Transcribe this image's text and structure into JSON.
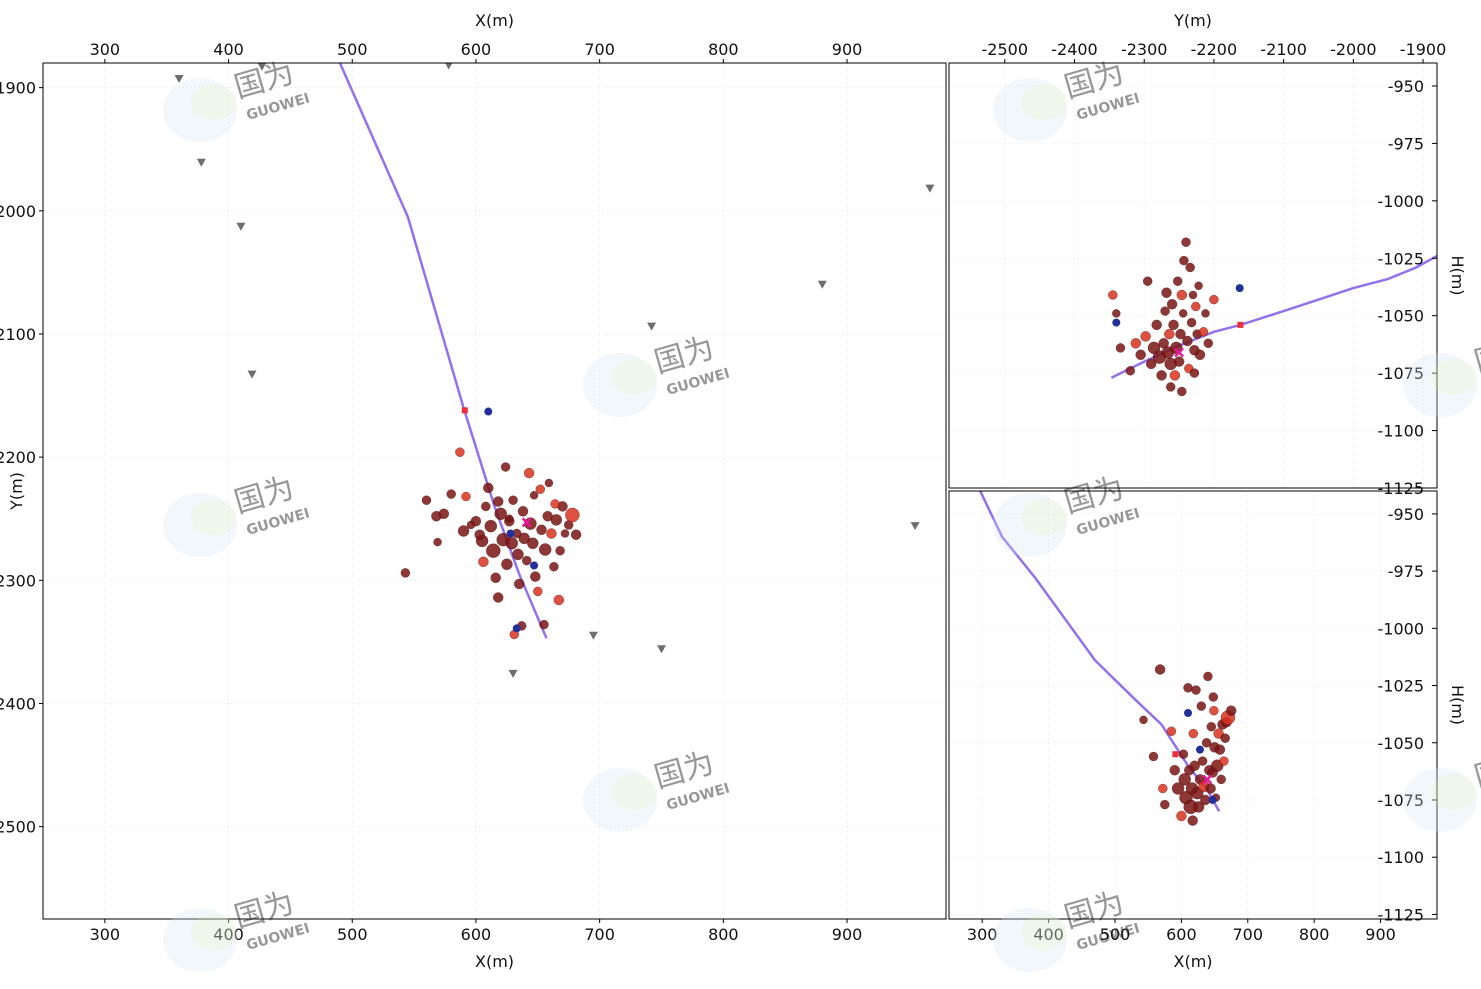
{
  "colors": {
    "event_dark": "#7a1414",
    "event_red": "#d8321e",
    "event_blue": "#24309a",
    "well": "#9370f0",
    "station": "#6e6e6e",
    "marker": "#e5169a",
    "perf": "#ee2b3a"
  },
  "watermark": {
    "cn": "国为",
    "en": "GUOWEI"
  },
  "chart_data": [
    {
      "type": "scatter",
      "view": "plan",
      "xlabel": "X(m)",
      "ylabel": "Y(m)",
      "xlim": [
        250,
        980
      ],
      "ylim": [
        -2575,
        -1880
      ],
      "xticks": [
        300,
        400,
        500,
        600,
        700,
        800,
        900
      ],
      "yticks": [
        -1900,
        -2000,
        -2100,
        -2200,
        -2300,
        -2400,
        -2500
      ],
      "xtick_labels": [
        "300",
        "400",
        "500",
        "600",
        "700",
        "800",
        "900"
      ],
      "ytick_labels": [
        "-1900",
        "-2000",
        "-2100",
        "-2200",
        "-2300",
        "-2400",
        "-2500"
      ],
      "stations": [
        [
          360,
          -1893
        ],
        [
          378,
          -1961
        ],
        [
          410,
          -2013
        ],
        [
          419,
          -2133
        ],
        [
          427,
          -1883
        ],
        [
          578,
          -1882
        ],
        [
          742,
          -2094
        ],
        [
          880,
          -2060
        ],
        [
          967,
          -1982
        ],
        [
          955,
          -2256
        ],
        [
          695,
          -2345
        ],
        [
          750,
          -2356
        ],
        [
          630,
          -2376
        ]
      ],
      "well": [
        [
          490,
          -1880
        ],
        [
          545,
          -2005
        ],
        [
          590,
          -2160
        ],
        [
          615,
          -2240
        ],
        [
          635,
          -2295
        ],
        [
          657,
          -2347
        ]
      ],
      "perf": [
        [
          591,
          -2162
        ]
      ],
      "marker": [
        [
          641,
          -2253
        ]
      ],
      "events_blue": [
        [
          610,
          -2163
        ],
        [
          633,
          -2339
        ],
        [
          647,
          -2288
        ],
        [
          628,
          -2262
        ]
      ],
      "events": [
        [
          543,
          -2294,
          4.5,
          "d"
        ],
        [
          560,
          -2235,
          4.5,
          "d"
        ],
        [
          568,
          -2248,
          5,
          "d"
        ],
        [
          569,
          -2269,
          4,
          "d"
        ],
        [
          574,
          -2246,
          5,
          "d"
        ],
        [
          587,
          -2196,
          4.5,
          "r"
        ],
        [
          580,
          -2230,
          4.5,
          "d"
        ],
        [
          590,
          -2260,
          5.5,
          "d"
        ],
        [
          592,
          -2232,
          4.5,
          "r"
        ],
        [
          600,
          -2252,
          5,
          "d"
        ],
        [
          605,
          -2268,
          6,
          "d"
        ],
        [
          606,
          -2285,
          5,
          "r"
        ],
        [
          608,
          -2240,
          4.5,
          "d"
        ],
        [
          610,
          -2225,
          5,
          "d"
        ],
        [
          612,
          -2256,
          6,
          "d"
        ],
        [
          614,
          -2276,
          7,
          "d"
        ],
        [
          616,
          -2298,
          5,
          "d"
        ],
        [
          618,
          -2314,
          5,
          "d"
        ],
        [
          620,
          -2246,
          6,
          "d"
        ],
        [
          622,
          -2267,
          6.5,
          "d"
        ],
        [
          624,
          -2208,
          4.5,
          "d"
        ],
        [
          625,
          -2287,
          5.5,
          "d"
        ],
        [
          627,
          -2252,
          5,
          "d"
        ],
        [
          629,
          -2270,
          6,
          "d"
        ],
        [
          630,
          -2235,
          4.5,
          "d"
        ],
        [
          631,
          -2344,
          4.5,
          "r"
        ],
        [
          633,
          -2262,
          4.5,
          "d"
        ],
        [
          634,
          -2279,
          5.5,
          "d"
        ],
        [
          635,
          -2303,
          5,
          "d"
        ],
        [
          637,
          -2337,
          4.5,
          "d"
        ],
        [
          638,
          -2244,
          5,
          "d"
        ],
        [
          639,
          -2266,
          5.5,
          "d"
        ],
        [
          641,
          -2284,
          4.5,
          "d"
        ],
        [
          643,
          -2213,
          5,
          "r"
        ],
        [
          644,
          -2254,
          6,
          "d"
        ],
        [
          646,
          -2270,
          5.5,
          "d"
        ],
        [
          647,
          -2231,
          4,
          "d"
        ],
        [
          648,
          -2297,
          5,
          "d"
        ],
        [
          650,
          -2309,
          4.5,
          "r"
        ],
        [
          652,
          -2226,
          4.5,
          "r"
        ],
        [
          653,
          -2259,
          5,
          "d"
        ],
        [
          655,
          -2336,
          4.5,
          "d"
        ],
        [
          656,
          -2275,
          6,
          "d"
        ],
        [
          658,
          -2248,
          5,
          "d"
        ],
        [
          659,
          -2221,
          4,
          "d"
        ],
        [
          661,
          -2262,
          5,
          "r"
        ],
        [
          663,
          -2289,
          4.5,
          "d"
        ],
        [
          665,
          -2251,
          5.5,
          "d"
        ],
        [
          667,
          -2316,
          5,
          "r"
        ],
        [
          668,
          -2276,
          4.5,
          "d"
        ],
        [
          670,
          -2240,
          5,
          "d"
        ],
        [
          672,
          -2262,
          4,
          "d"
        ],
        [
          675,
          -2255,
          4.5,
          "d"
        ],
        [
          678,
          -2247,
          7,
          "r"
        ],
        [
          681,
          -2263,
          5,
          "d"
        ],
        [
          664,
          -2238,
          4.5,
          "r"
        ],
        [
          618,
          -2236,
          5,
          "d"
        ],
        [
          627,
          -2250,
          4,
          "d"
        ],
        [
          603,
          -2263,
          5,
          "d"
        ],
        [
          596,
          -2255,
          4,
          "d"
        ]
      ]
    },
    {
      "type": "scatter",
      "view": "side-y",
      "xlabel": "Y(m)",
      "ylabel": "H(m)",
      "xlim": [
        -2580,
        -1880
      ],
      "ylim": [
        -1125,
        -940
      ],
      "xticks": [
        -2500,
        -2400,
        -2300,
        -2200,
        -2100,
        -2000,
        -1900
      ],
      "yticks": [
        -950,
        -975,
        -1000,
        -1025,
        -1050,
        -1075,
        -1100,
        -1125
      ],
      "xtick_labels": [
        "-2500",
        "-2400",
        "-2300",
        "-2200",
        "-2100",
        "-2000",
        "-1900"
      ],
      "ytick_labels": [
        "-950",
        "-975",
        "-1000",
        "-1025",
        "-1050",
        "-1075",
        "-1100",
        "-1125"
      ],
      "well": [
        [
          -2347,
          -1077
        ],
        [
          -2300,
          -1070
        ],
        [
          -2250,
          -1063
        ],
        [
          -2200,
          -1057
        ],
        [
          -2162,
          -1054
        ],
        [
          -2100,
          -1048
        ],
        [
          -2040,
          -1042
        ],
        [
          -2000,
          -1038
        ],
        [
          -1950,
          -1034
        ],
        [
          -1910,
          -1029
        ],
        [
          -1880,
          -1024
        ]
      ],
      "perf": [
        [
          -2162,
          -1054
        ]
      ],
      "marker": [
        [
          -2250,
          -1066
        ]
      ],
      "events_blue": [
        [
          -2163,
          -1038
        ],
        [
          -2340,
          -1053
        ]
      ],
      "events": [
        [
          -2345,
          -1041,
          4.5,
          "r"
        ],
        [
          -2340,
          -1049,
          4,
          "d"
        ],
        [
          -2334,
          -1064,
          4.5,
          "d"
        ],
        [
          -2320,
          -1074,
          4.5,
          "d"
        ],
        [
          -2312,
          -1062,
          5,
          "r"
        ],
        [
          -2305,
          -1067,
          5,
          "d"
        ],
        [
          -2298,
          -1059,
          5,
          "r"
        ],
        [
          -2295,
          -1035,
          4.5,
          "d"
        ],
        [
          -2290,
          -1071,
          5,
          "d"
        ],
        [
          -2286,
          -1064,
          6,
          "d"
        ],
        [
          -2282,
          -1054,
          5,
          "d"
        ],
        [
          -2278,
          -1068,
          6.5,
          "d"
        ],
        [
          -2275,
          -1076,
          5,
          "d"
        ],
        [
          -2272,
          -1062,
          5,
          "d"
        ],
        [
          -2270,
          -1048,
          4.5,
          "d"
        ],
        [
          -2268,
          -1040,
          5,
          "d"
        ],
        [
          -2266,
          -1066,
          6,
          "d"
        ],
        [
          -2264,
          -1058,
          5,
          "r"
        ],
        [
          -2262,
          -1071,
          6,
          "d"
        ],
        [
          -2260,
          -1045,
          5,
          "d"
        ],
        [
          -2258,
          -1054,
          5,
          "d"
        ],
        [
          -2256,
          -1076,
          5,
          "r"
        ],
        [
          -2254,
          -1064,
          6,
          "d"
        ],
        [
          -2252,
          -1035,
          4.5,
          "d"
        ],
        [
          -2250,
          -1070,
          5,
          "d"
        ],
        [
          -2248,
          -1058,
          5,
          "d"
        ],
        [
          -2246,
          -1041,
          5,
          "r"
        ],
        [
          -2244,
          -1049,
          4,
          "d"
        ],
        [
          -2243,
          -1026,
          4.5,
          "d"
        ],
        [
          -2240,
          -1018,
          4.5,
          "d"
        ],
        [
          -2238,
          -1061,
          5,
          "d"
        ],
        [
          -2236,
          -1073,
          4.5,
          "r"
        ],
        [
          -2234,
          -1029,
          4.5,
          "d"
        ],
        [
          -2232,
          -1053,
          4.5,
          "d"
        ],
        [
          -2230,
          -1041,
          4,
          "d"
        ],
        [
          -2228,
          -1065,
          5,
          "d"
        ],
        [
          -2226,
          -1046,
          4.5,
          "r"
        ],
        [
          -2224,
          -1058,
          4.5,
          "d"
        ],
        [
          -2222,
          -1037,
          4,
          "d"
        ],
        [
          -2220,
          -1067,
          5,
          "d"
        ],
        [
          -2215,
          -1057,
          4.5,
          "r"
        ],
        [
          -2212,
          -1049,
          4,
          "d"
        ],
        [
          -2208,
          -1062,
          4.5,
          "d"
        ],
        [
          -2200,
          -1043,
          4.5,
          "r"
        ],
        [
          -2246,
          -1083,
          4.5,
          "d"
        ],
        [
          -2262,
          -1081,
          4.5,
          "d"
        ],
        [
          -2228,
          -1075,
          4.5,
          "d"
        ]
      ]
    },
    {
      "type": "scatter",
      "view": "side-x",
      "xlabel": "X(m)",
      "ylabel": "H(m)",
      "xlim": [
        250,
        985
      ],
      "ylim": [
        -1127,
        -940
      ],
      "xticks": [
        300,
        400,
        500,
        600,
        700,
        800,
        900
      ],
      "yticks": [
        -950,
        -975,
        -1000,
        -1025,
        -1050,
        -1075,
        -1100,
        -1125
      ],
      "xtick_labels": [
        "300",
        "400",
        "500",
        "600",
        "700",
        "800",
        "900"
      ],
      "ytick_labels": [
        "-950",
        "-975",
        "-1000",
        "-1025",
        "-1050",
        "-1075",
        "-1100",
        "-1125"
      ],
      "well": [
        [
          297,
          -940
        ],
        [
          330,
          -960
        ],
        [
          380,
          -978
        ],
        [
          430,
          -998
        ],
        [
          470,
          -1014
        ],
        [
          530,
          -1031
        ],
        [
          570,
          -1042
        ],
        [
          610,
          -1060
        ],
        [
          640,
          -1071
        ],
        [
          657,
          -1080
        ]
      ],
      "perf": [
        [
          591,
          -1055
        ]
      ],
      "marker": [
        [
          639,
          -1066
        ]
      ],
      "events_blue": [
        [
          610,
          -1037
        ],
        [
          628,
          -1053
        ],
        [
          647,
          -1075
        ]
      ],
      "events": [
        [
          543,
          -1040,
          4,
          "d"
        ],
        [
          558,
          -1056,
          4.5,
          "d"
        ],
        [
          568,
          -1018,
          5,
          "d"
        ],
        [
          572,
          -1070,
          4.5,
          "r"
        ],
        [
          575,
          -1077,
          4.5,
          "d"
        ],
        [
          585,
          -1045,
          4.5,
          "r"
        ],
        [
          590,
          -1062,
          5,
          "d"
        ],
        [
          595,
          -1070,
          6,
          "d"
        ],
        [
          600,
          -1082,
          5,
          "r"
        ],
        [
          603,
          -1055,
          4.5,
          "d"
        ],
        [
          605,
          -1066,
          6,
          "d"
        ],
        [
          607,
          -1074,
          6.5,
          "d"
        ],
        [
          610,
          -1026,
          4.5,
          "d"
        ],
        [
          612,
          -1062,
          5,
          "d"
        ],
        [
          614,
          -1078,
          7,
          "d"
        ],
        [
          616,
          -1070,
          6,
          "d"
        ],
        [
          617,
          -1084,
          5,
          "d"
        ],
        [
          618,
          -1046,
          4.5,
          "r"
        ],
        [
          620,
          -1060,
          5,
          "d"
        ],
        [
          622,
          -1027,
          4.5,
          "d"
        ],
        [
          624,
          -1072,
          6,
          "d"
        ],
        [
          626,
          -1078,
          5.5,
          "d"
        ],
        [
          628,
          -1066,
          5,
          "d"
        ],
        [
          630,
          -1034,
          4.5,
          "d"
        ],
        [
          632,
          -1058,
          4.5,
          "d"
        ],
        [
          634,
          -1069,
          5.5,
          "r"
        ],
        [
          636,
          -1075,
          5,
          "d"
        ],
        [
          638,
          -1050,
          4.5,
          "d"
        ],
        [
          640,
          -1021,
          4.5,
          "d"
        ],
        [
          642,
          -1062,
          5,
          "d"
        ],
        [
          644,
          -1070,
          5,
          "d"
        ],
        [
          645,
          -1043,
          4.5,
          "d"
        ],
        [
          647,
          -1063,
          5,
          "d"
        ],
        [
          649,
          -1036,
          4.5,
          "r"
        ],
        [
          650,
          -1052,
          5,
          "d"
        ],
        [
          652,
          -1074,
          4,
          "d"
        ],
        [
          654,
          -1060,
          6,
          "d"
        ],
        [
          656,
          -1046,
          5,
          "r"
        ],
        [
          658,
          -1053,
          5,
          "d"
        ],
        [
          660,
          -1066,
          4.5,
          "d"
        ],
        [
          662,
          -1042,
          5,
          "d"
        ],
        [
          664,
          -1058,
          4.5,
          "r"
        ],
        [
          666,
          -1048,
          4.5,
          "d"
        ],
        [
          668,
          -1041,
          5,
          "d"
        ],
        [
          670,
          -1039,
          7,
          "r"
        ],
        [
          675,
          -1036,
          5,
          "d"
        ],
        [
          648,
          -1030,
          4.5,
          "d"
        ]
      ]
    }
  ]
}
